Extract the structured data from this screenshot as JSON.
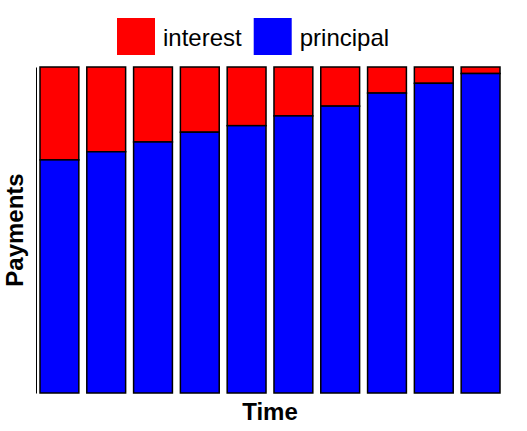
{
  "chart_data": {
    "type": "bar",
    "stacked": true,
    "legend": "top",
    "tick_labels": false,
    "x_label": "Time",
    "y_label": "Payments",
    "categories": [
      null,
      null,
      null,
      null,
      null,
      null,
      null,
      null,
      null,
      null
    ],
    "series": [
      {
        "name": "interest",
        "color": "#ff0000",
        "values": [
          28.5,
          26,
          23,
          20,
          18,
          15,
          12,
          8,
          5,
          2
        ]
      },
      {
        "name": "principal",
        "color": "#0000ff",
        "values": [
          71.5,
          74,
          77,
          80,
          82,
          85,
          88,
          92,
          95,
          98
        ]
      }
    ],
    "ylim": [
      0,
      100
    ]
  }
}
